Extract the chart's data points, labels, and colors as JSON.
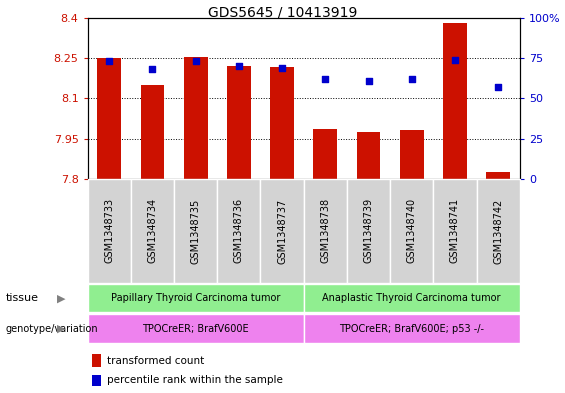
{
  "title": "GDS5645 / 10413919",
  "samples": [
    "GSM1348733",
    "GSM1348734",
    "GSM1348735",
    "GSM1348736",
    "GSM1348737",
    "GSM1348738",
    "GSM1348739",
    "GSM1348740",
    "GSM1348741",
    "GSM1348742"
  ],
  "transformed_count": [
    8.25,
    8.15,
    8.255,
    8.22,
    8.215,
    7.985,
    7.975,
    7.98,
    8.38,
    7.825
  ],
  "percentile_rank": [
    73,
    68,
    73,
    70,
    69,
    62,
    61,
    62,
    74,
    57
  ],
  "ylim_left": [
    7.8,
    8.4
  ],
  "ylim_right": [
    0,
    100
  ],
  "yticks_left": [
    7.8,
    7.95,
    8.1,
    8.25,
    8.4
  ],
  "yticks_right": [
    0,
    25,
    50,
    75,
    100
  ],
  "bar_color": "#cc1100",
  "dot_color": "#0000cc",
  "tissue_group1_label": "Papillary Thyroid Carcinoma tumor",
  "tissue_group2_label": "Anaplastic Thyroid Carcinoma tumor",
  "genotype_group1_label": "TPOCreER; BrafV600E",
  "genotype_group2_label": "TPOCreER; BrafV600E; p53 -/-",
  "tissue_color": "#90ee90",
  "genotype_color": "#ee82ee",
  "xtick_bg_color": "#d3d3d3",
  "legend_bar_label": "transformed count",
  "legend_dot_label": "percentile rank within the sample",
  "bar_base": 7.8,
  "tick_label_color_left": "#cc1100",
  "tick_label_color_right": "#0000cc",
  "grid_dotted_at": [
    7.95,
    8.1,
    8.25
  ]
}
